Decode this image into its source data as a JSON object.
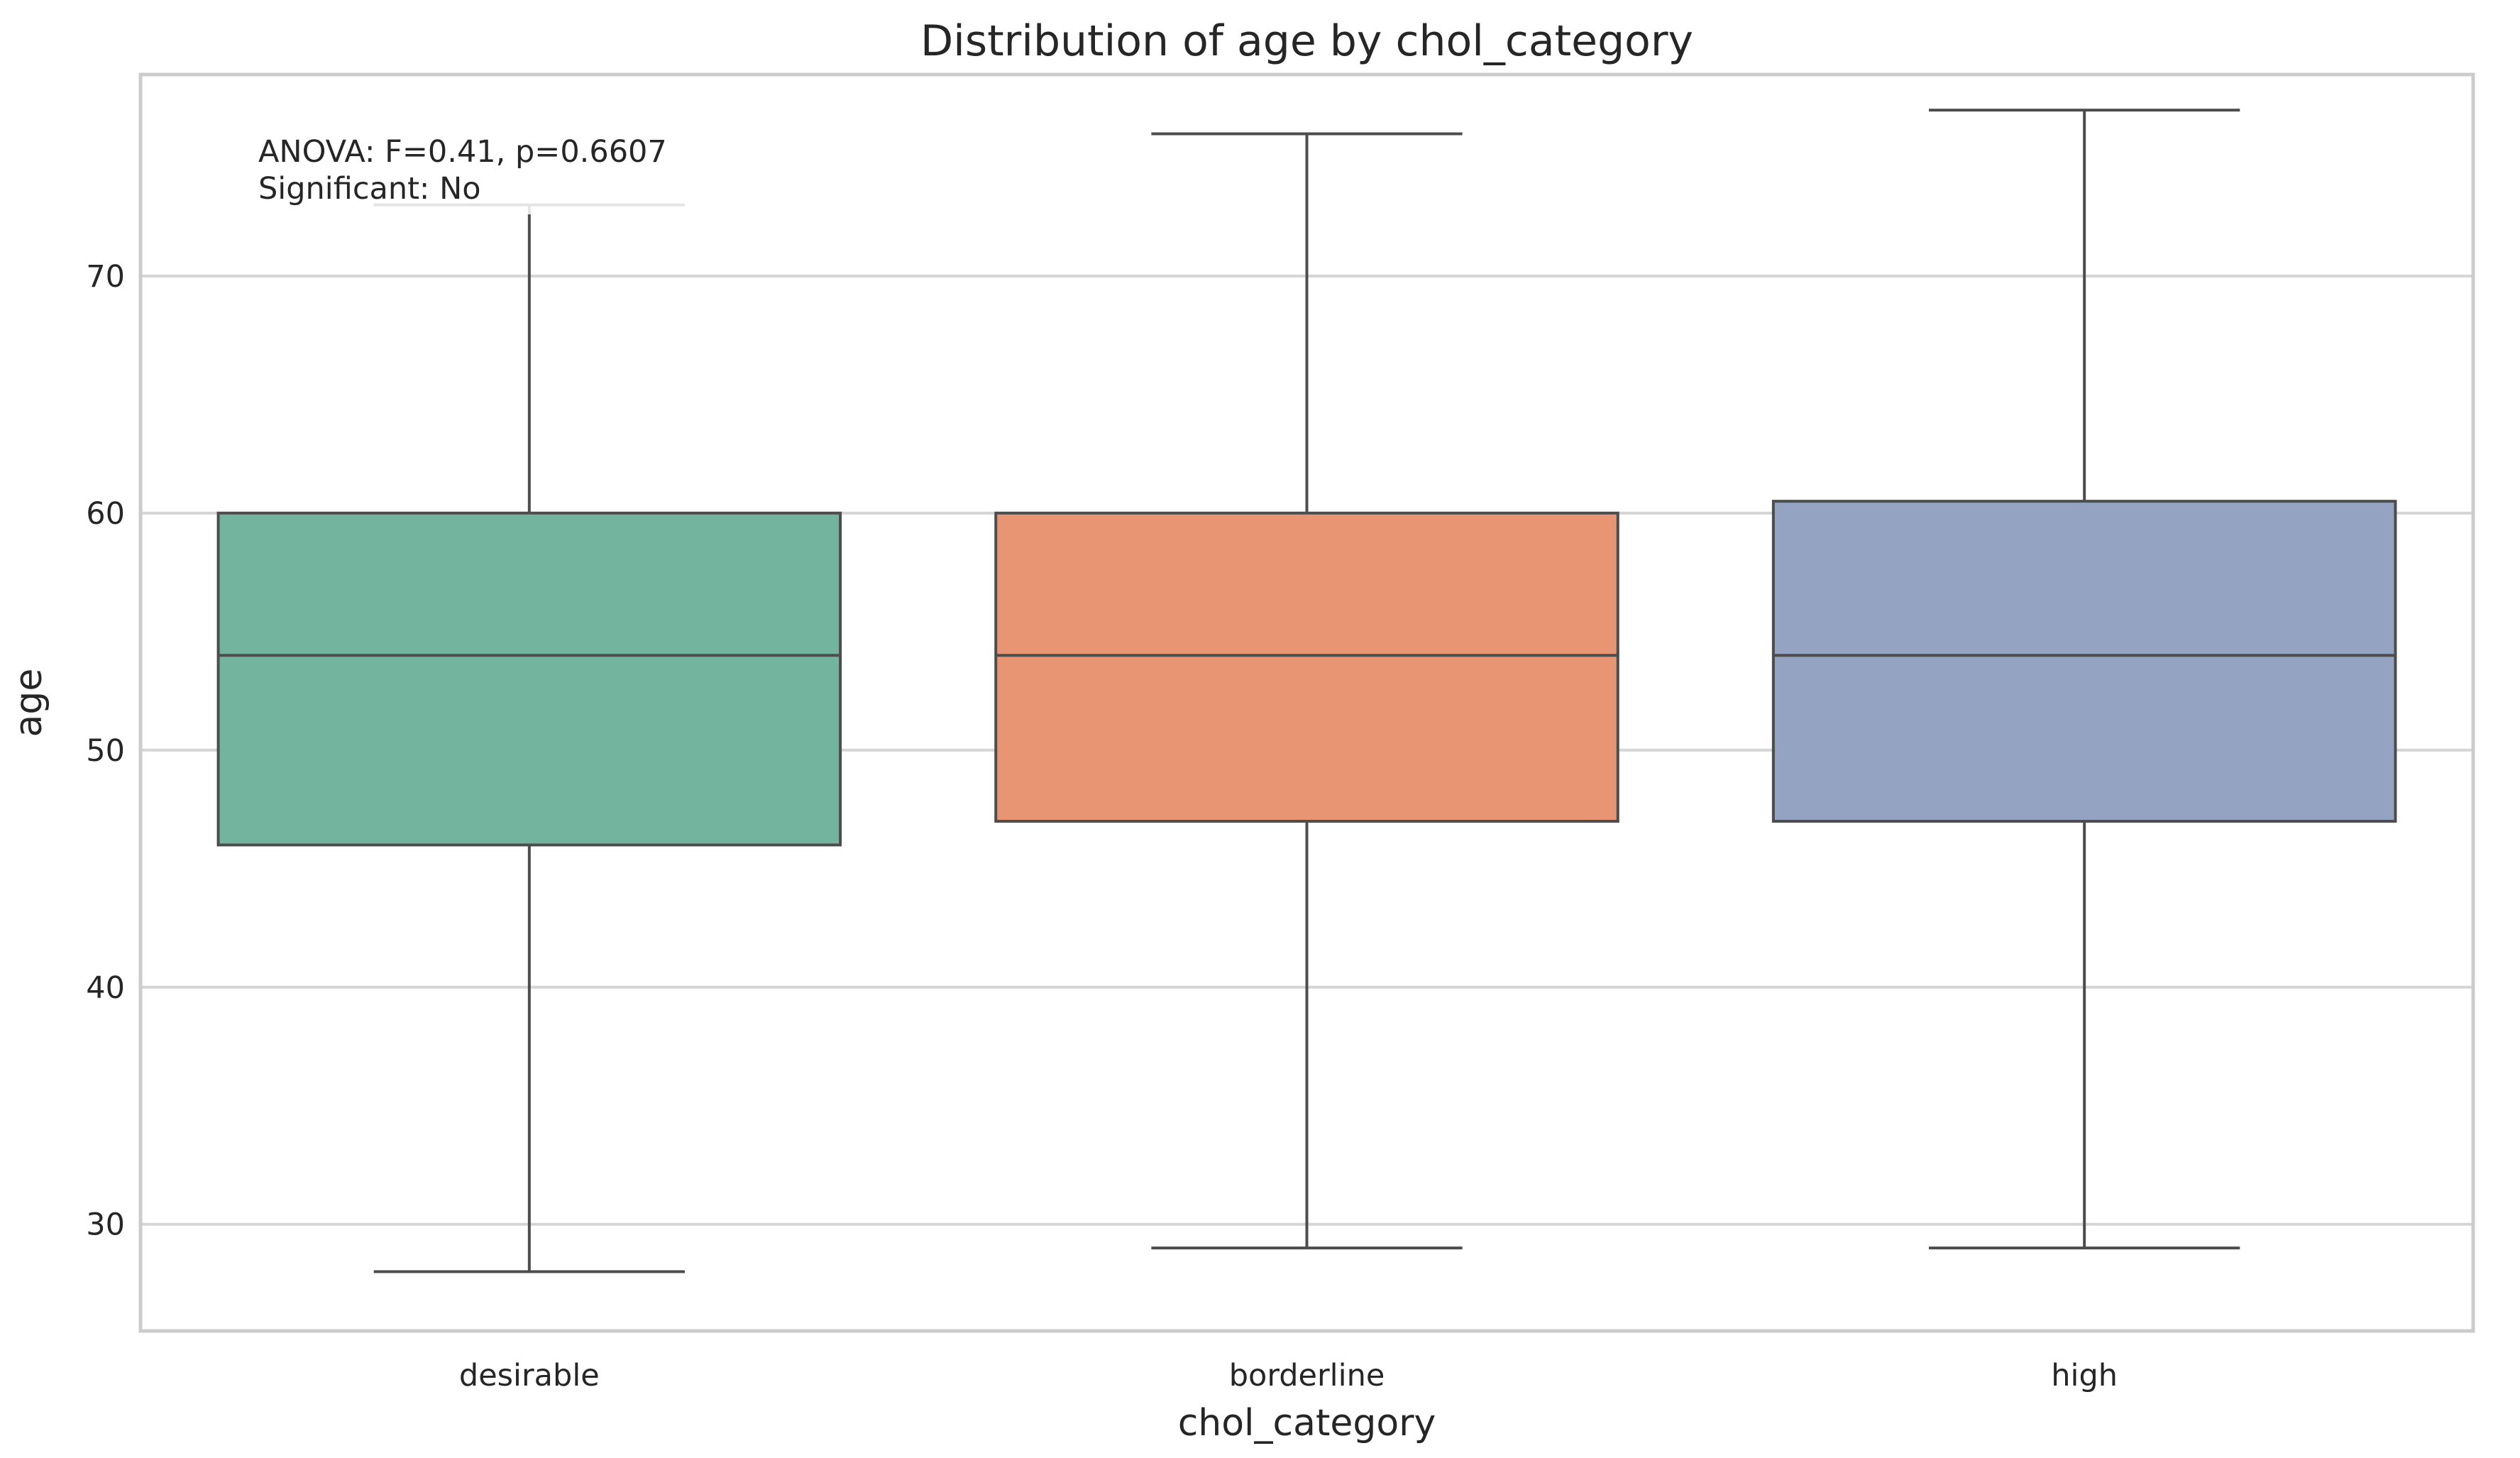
{
  "chart_data": {
    "type": "box",
    "title": "Distribution of age by chol_category",
    "xlabel": "chol_category",
    "ylabel": "age",
    "ylim": [
      25.5,
      78.5
    ],
    "yticks": [
      "30",
      "40",
      "50",
      "60",
      "70"
    ],
    "categories": [
      "desirable",
      "borderline",
      "high"
    ],
    "boxes": [
      {
        "category": "desirable",
        "whisker_low": 28,
        "q1": 46,
        "median": 54,
        "q3": 60,
        "whisker_high": 73,
        "color": "#73b49f"
      },
      {
        "category": "borderline",
        "whisker_low": 29,
        "q1": 47,
        "median": 54,
        "q3": 60,
        "whisker_high": 76,
        "color": "#e89573"
      },
      {
        "category": "high",
        "whisker_low": 29,
        "q1": 47,
        "median": 54,
        "q3": 60.5,
        "whisker_high": 77,
        "color": "#94a3c2"
      }
    ],
    "grid": true,
    "annotation": {
      "line1": "ANOVA: F=0.41, p=0.6607",
      "line2": "Significant: No"
    }
  }
}
